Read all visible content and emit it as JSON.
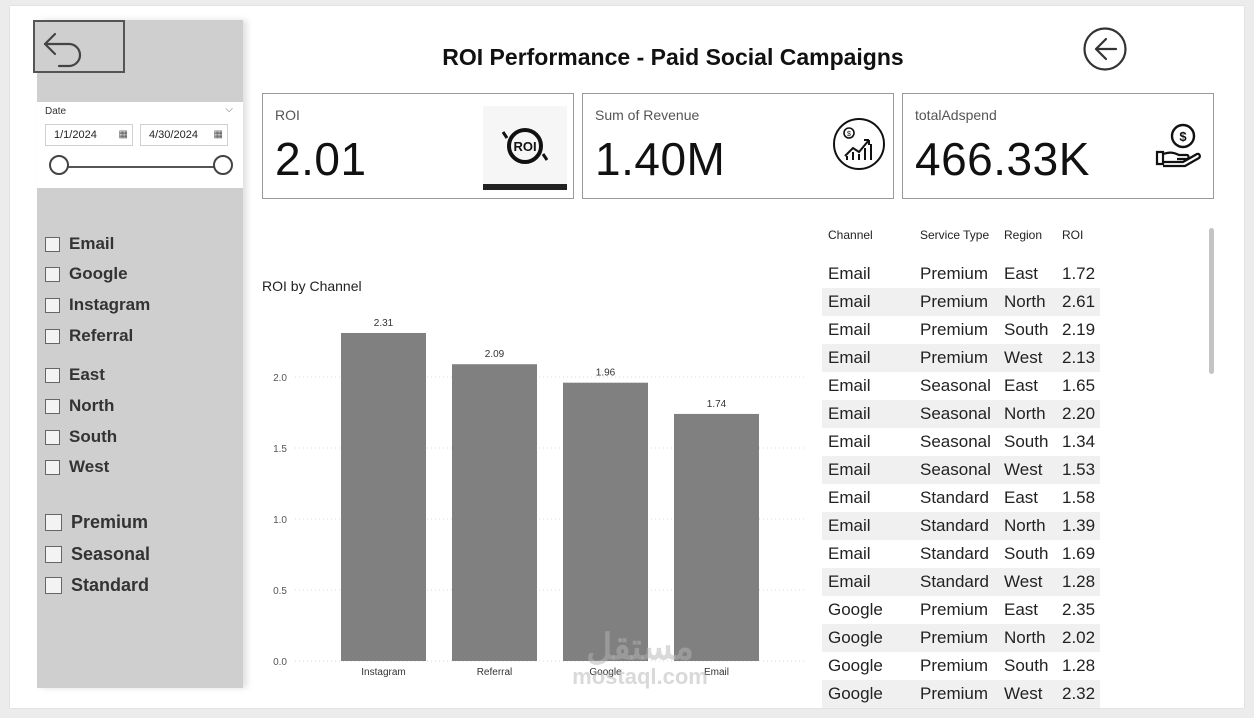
{
  "title": "ROI Performance - Paid Social Campaigns",
  "sidebar": {
    "date_title": "Date",
    "date_start": "1/1/2024",
    "date_end": "4/30/2024",
    "channels": [
      "Email",
      "Google",
      "Instagram",
      "Referral"
    ],
    "regions": [
      "East",
      "North",
      "South",
      "West"
    ],
    "service_types": [
      "Premium",
      "Seasonal",
      "Standard"
    ]
  },
  "kpis": {
    "roi": {
      "label": "ROI",
      "value": "2.01"
    },
    "revenue": {
      "label": "Sum of Revenue",
      "value": "1.40M"
    },
    "adspend": {
      "label": "totalAdspend",
      "value": "466.33K"
    }
  },
  "icons": {
    "back": "undo-arrow-icon",
    "nav_back": "circle-arrow-left-icon",
    "roi": "roi-badge-icon",
    "revenue": "growth-chart-icon",
    "adspend": "money-hand-icon"
  },
  "chart_title": "ROI by Channel",
  "chart_data": {
    "type": "bar",
    "title": "ROI by Channel",
    "categories": [
      "Instagram",
      "Referral",
      "Google",
      "Email"
    ],
    "values": [
      2.31,
      2.09,
      1.96,
      1.74
    ],
    "data_labels": [
      "2.31",
      "2.09",
      "1.96",
      "1.74"
    ],
    "yticks": [
      "0.0",
      "0.5",
      "1.0",
      "1.5",
      "2.0"
    ],
    "ylim": [
      0,
      2.5
    ],
    "grid": true,
    "bar_color": "#808080"
  },
  "table": {
    "columns": [
      "Channel",
      "Service Type",
      "Region",
      "ROI"
    ],
    "rows": [
      [
        "Email",
        "Premium",
        "East",
        "1.72"
      ],
      [
        "Email",
        "Premium",
        "North",
        "2.61"
      ],
      [
        "Email",
        "Premium",
        "South",
        "2.19"
      ],
      [
        "Email",
        "Premium",
        "West",
        "2.13"
      ],
      [
        "Email",
        "Seasonal",
        "East",
        "1.65"
      ],
      [
        "Email",
        "Seasonal",
        "North",
        "2.20"
      ],
      [
        "Email",
        "Seasonal",
        "South",
        "1.34"
      ],
      [
        "Email",
        "Seasonal",
        "West",
        "1.53"
      ],
      [
        "Email",
        "Standard",
        "East",
        "1.58"
      ],
      [
        "Email",
        "Standard",
        "North",
        "1.39"
      ],
      [
        "Email",
        "Standard",
        "South",
        "1.69"
      ],
      [
        "Email",
        "Standard",
        "West",
        "1.28"
      ],
      [
        "Google",
        "Premium",
        "East",
        "2.35"
      ],
      [
        "Google",
        "Premium",
        "North",
        "2.02"
      ],
      [
        "Google",
        "Premium",
        "South",
        "1.28"
      ],
      [
        "Google",
        "Premium",
        "West",
        "2.32"
      ]
    ]
  },
  "watermark": {
    "arabic": "مستقل",
    "latin": "mostaql.com"
  }
}
